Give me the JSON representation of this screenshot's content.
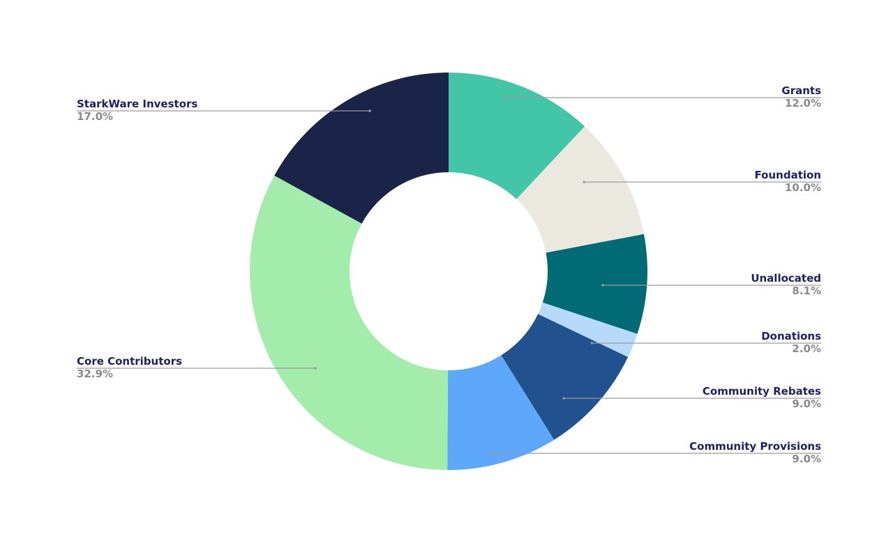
{
  "chart_data": {
    "type": "pie",
    "donut": true,
    "title": "",
    "slices": [
      {
        "name": "Grants",
        "value": 12.0,
        "label": "12.0%",
        "color": "#43c6a8"
      },
      {
        "name": "Foundation",
        "value": 10.0,
        "label": "10.0%",
        "color": "#ebe8df"
      },
      {
        "name": "Unallocated",
        "value": 8.1,
        "label": "8.1%",
        "color": "#006a75"
      },
      {
        "name": "Donations",
        "value": 2.0,
        "label": "2.0%",
        "color": "#b8dafa"
      },
      {
        "name": "Community Rebates",
        "value": 9.0,
        "label": "9.0%",
        "color": "#22518f"
      },
      {
        "name": "Community Provisions",
        "value": 9.0,
        "label": "9.0%",
        "color": "#5da8fb"
      },
      {
        "name": "Core Contributors",
        "value": 32.9,
        "label": "32.9%",
        "color": "#a4ecab"
      },
      {
        "name": "StarkWare Investors",
        "value": 17.0,
        "label": "17.0%",
        "color": "#1a2348"
      }
    ]
  }
}
